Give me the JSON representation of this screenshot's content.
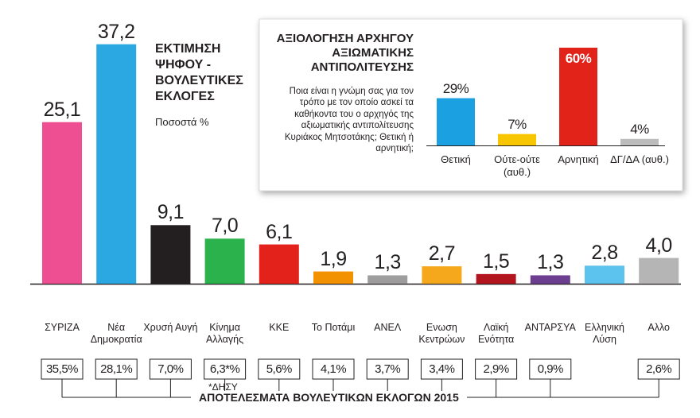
{
  "chart_data": [
    {
      "type": "bar",
      "title": "ΕΚΤΙΜΗΣΗ ΨΗΦΟΥ - ΒΟΥΛΕΥΤΙΚΕΣ ΕΚΛΟΓΕΣ",
      "subtitle": "Ποσοστά %",
      "categories": [
        "ΣΥΡΙΖΑ",
        "Νέα Δημοκρατία",
        "Χρυσή Αυγή",
        "Κίνημα Αλλαγής",
        "ΚΚΕ",
        "Το Ποτάμι",
        "ΑΝΕΛ",
        "Ενωση Κεντρώων",
        "Λαϊκή Ενότητα",
        "ΑΝΤΑΡΣΥΑ",
        "Ελληνική Λύση",
        "Αλλο"
      ],
      "values": [
        25.1,
        37.2,
        9.1,
        7.0,
        6.1,
        1.9,
        1.3,
        2.7,
        1.5,
        1.3,
        2.8,
        4.0
      ],
      "value_labels": [
        "25,1",
        "37,2",
        "9,1",
        "7,0",
        "6,1",
        "1,9",
        "1,3",
        "2,7",
        "1,5",
        "1,3",
        "2,8",
        "4,0"
      ],
      "colors": [
        "#ee4f93",
        "#2ba8e2",
        "#231f20",
        "#2bb24c",
        "#e3221b",
        "#f39200",
        "#9d9d9d",
        "#f6a81c",
        "#b2151d",
        "#6b3e90",
        "#5cc3ee",
        "#b5b5b5"
      ],
      "results_2015": {
        "title": "ΑΠΟΤΕΛΕΣΜΑΤΑ ΒΟΥΛΕΥΤΙΚΩΝ ΕΚΛΟΓΩΝ 2015",
        "labels": [
          "35,5%",
          "28,1%",
          "7,0%",
          "6,3*%",
          "5,6%",
          "4,1%",
          "3,7%",
          "3,4%",
          "2,9%",
          "0,9%",
          null,
          "2,6%"
        ],
        "footnote": "*ΔΗΣΥ"
      }
    },
    {
      "type": "bar",
      "title": "ΑΞΙΟΛΟΓΗΣΗ ΑΡΧΗΓΟΥ ΑΞΙΩΜΑΤΙΚΗΣ ΑΝΤΙΠΟΛΙΤΕΥΣΗΣ",
      "subtitle": "Ποια είναι η γνώμη σας για τον τρόπο με τον οποίο ασκεί τα καθήκοντα του ο αρχηγός της αξιωματικής αντιπολίτευσης Κυριάκος Μητσοτάκης; Θετική ή αρνητική;",
      "categories": [
        "Θετική",
        "Ούτε-ούτε (αυθ.)",
        "Αρνητική",
        "ΔΓ/ΔΑ (αυθ.)"
      ],
      "values": [
        29,
        7,
        60,
        4
      ],
      "value_labels": [
        "29%",
        "7%",
        "60%",
        "4%"
      ],
      "colors": [
        "#1ba0e1",
        "#f7c600",
        "#e2231a",
        "#bcbcbc"
      ]
    }
  ]
}
